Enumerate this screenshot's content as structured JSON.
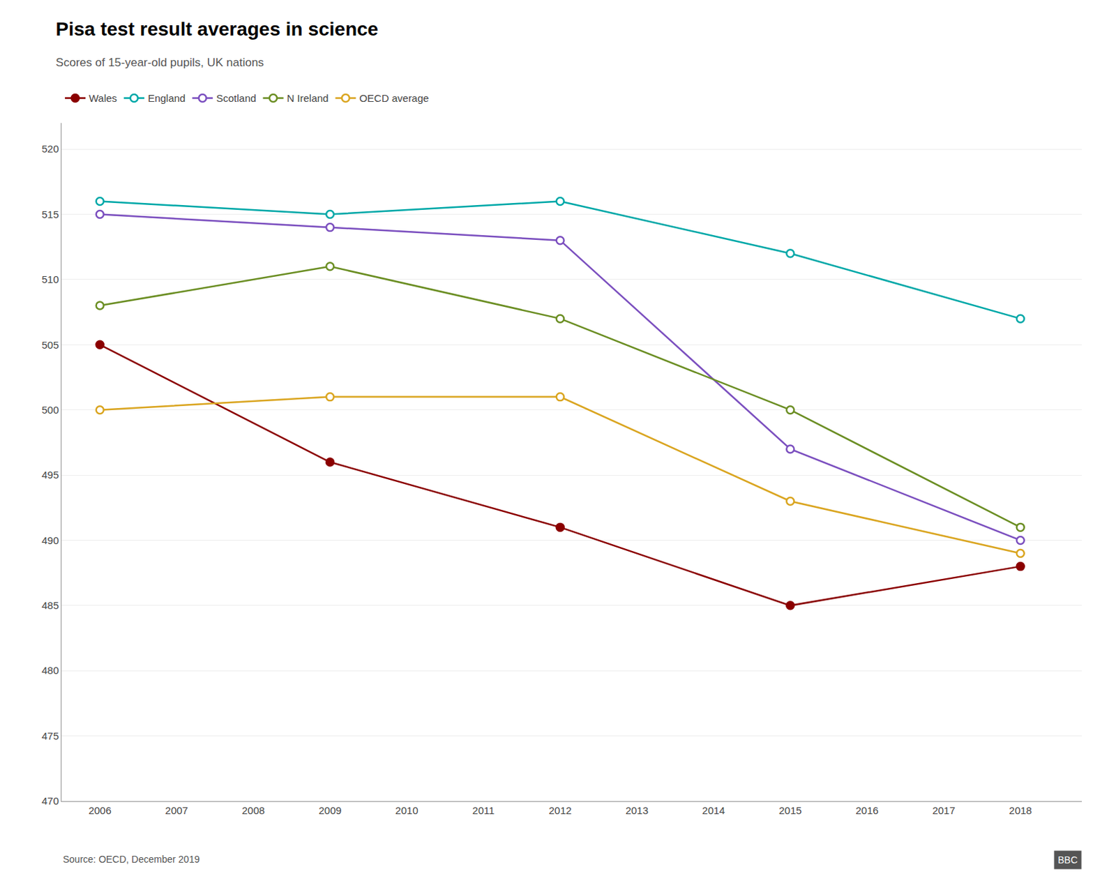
{
  "chart_data": {
    "type": "line",
    "title": "Pisa test result averages in science",
    "subtitle": "Scores of 15-year-old pupils, UK nations",
    "annotations": [
      "Source: OECD, December 2019",
      "BBC"
    ],
    "x": [
      2006,
      2009,
      2012,
      2015,
      2018
    ],
    "series": [
      {
        "name": "Wales",
        "color": "#8B0000",
        "marker": "filled",
        "values": [
          505,
          496,
          491,
          485,
          488
        ]
      },
      {
        "name": "England",
        "color": "#00A8A8",
        "marker": "hollow",
        "values": [
          516,
          515,
          516,
          512,
          507
        ]
      },
      {
        "name": "Scotland",
        "color": "#7B4FBF",
        "marker": "hollow",
        "values": [
          515,
          514,
          513,
          497,
          490
        ]
      },
      {
        "name": "N Ireland",
        "color": "#6B8E23",
        "marker": "hollow",
        "values": [
          508,
          511,
          507,
          500,
          491
        ]
      },
      {
        "name": "OECD average",
        "color": "#DAA520",
        "marker": "hollow",
        "values": [
          500,
          501,
          501,
          493,
          489
        ]
      }
    ],
    "xlim": [
      2005.5,
      2018.8
    ],
    "xticks": [
      2006,
      2007,
      2008,
      2009,
      2010,
      2011,
      2012,
      2013,
      2014,
      2015,
      2016,
      2017,
      2018
    ],
    "ylim": [
      470,
      522
    ],
    "yticks": [
      470,
      475,
      480,
      485,
      490,
      495,
      500,
      505,
      510,
      515,
      520
    ],
    "grid": true,
    "legend": "top"
  }
}
